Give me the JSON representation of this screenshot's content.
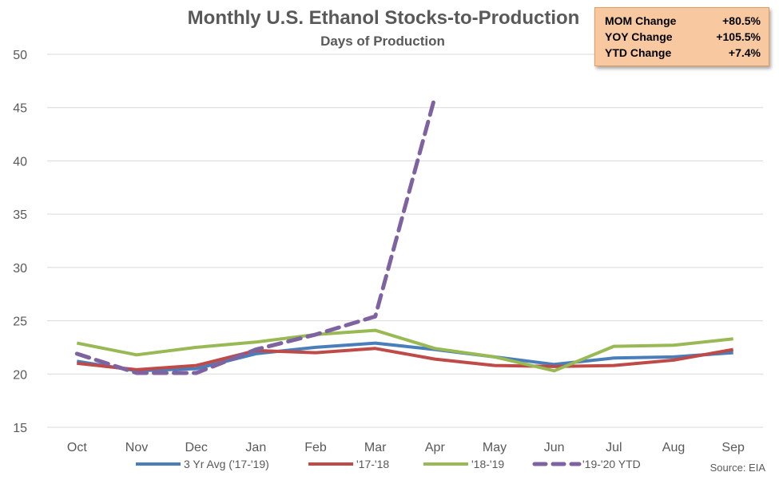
{
  "colors": {
    "three_yr_avg": "#4a7ebb",
    "y17_18": "#be4b48",
    "y18_19": "#98b954",
    "y19_20_ytd": "#7f63a0",
    "box_fill": "#f8c9a0",
    "box_border": "#e69b5a"
  },
  "chart_data": {
    "type": "line",
    "title": "Monthly U.S. Ethanol Stocks-to-Production",
    "subtitle": "Days of Production",
    "xlabel": "",
    "ylabel": "",
    "categories": [
      "Oct",
      "Nov",
      "Dec",
      "Jan",
      "Feb",
      "Mar",
      "Apr",
      "May",
      "Jun",
      "Jul",
      "Aug",
      "Sep"
    ],
    "ylim": [
      15,
      50
    ],
    "yticks": [
      15,
      20,
      25,
      30,
      35,
      40,
      45,
      50
    ],
    "grid": true,
    "legend_position": "bottom",
    "source": "Source: EIA",
    "series": [
      {
        "name": "3 Yr Avg ('17-'19)",
        "color": "#4a7ebb",
        "dashed": false,
        "values": [
          21.2,
          20.3,
          20.5,
          21.9,
          22.5,
          22.9,
          22.3,
          21.6,
          20.9,
          21.5,
          21.6,
          22.0
        ]
      },
      {
        "name": "'17-'18",
        "color": "#be4b48",
        "dashed": false,
        "values": [
          21.0,
          20.4,
          20.8,
          22.2,
          22.0,
          22.4,
          21.4,
          20.8,
          20.7,
          20.8,
          21.3,
          22.3
        ]
      },
      {
        "name": "'18-'19",
        "color": "#98b954",
        "dashed": false,
        "values": [
          22.9,
          21.8,
          22.5,
          23.0,
          23.7,
          24.1,
          22.4,
          21.6,
          20.3,
          22.6,
          22.7,
          23.3
        ]
      },
      {
        "name": "'19-'20 YTD",
        "color": "#7f63a0",
        "dashed": true,
        "values": [
          21.9,
          20.1,
          20.1,
          22.3,
          23.7,
          25.4,
          46.0,
          null,
          null,
          null,
          null,
          null
        ]
      }
    ]
  },
  "stats_box": {
    "rows": [
      {
        "label": "MOM Change",
        "value": "+80.5%"
      },
      {
        "label": "YOY Change",
        "value": "+105.5%"
      },
      {
        "label": "YTD Change",
        "value": "+7.4%"
      }
    ]
  }
}
